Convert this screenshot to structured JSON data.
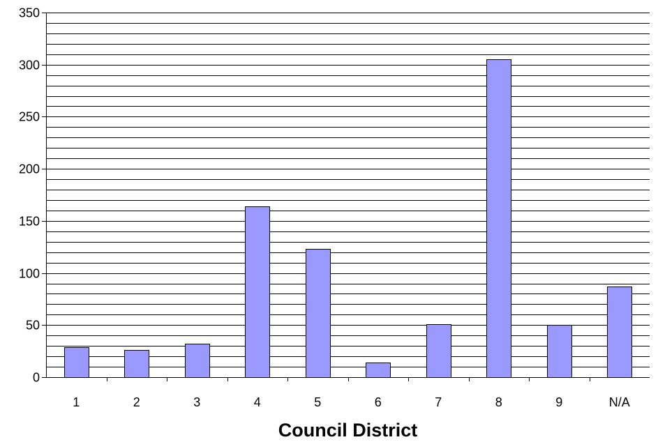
{
  "chart_data": {
    "type": "bar",
    "title": "",
    "xlabel": "Council District",
    "ylabel": "",
    "categories": [
      "1",
      "2",
      "3",
      "4",
      "5",
      "6",
      "7",
      "8",
      "9",
      "N/A"
    ],
    "values": [
      29,
      26,
      32,
      164,
      123,
      14,
      51,
      305,
      50,
      87
    ],
    "ylim": [
      0,
      350
    ],
    "y_ticks": [
      "0",
      "50",
      "100",
      "150",
      "200",
      "250",
      "300",
      "350"
    ],
    "minor_gridline_step": 10,
    "grid": true,
    "legend": "none",
    "bar_color": "#9999ff",
    "bar_border_color": "#000000"
  }
}
